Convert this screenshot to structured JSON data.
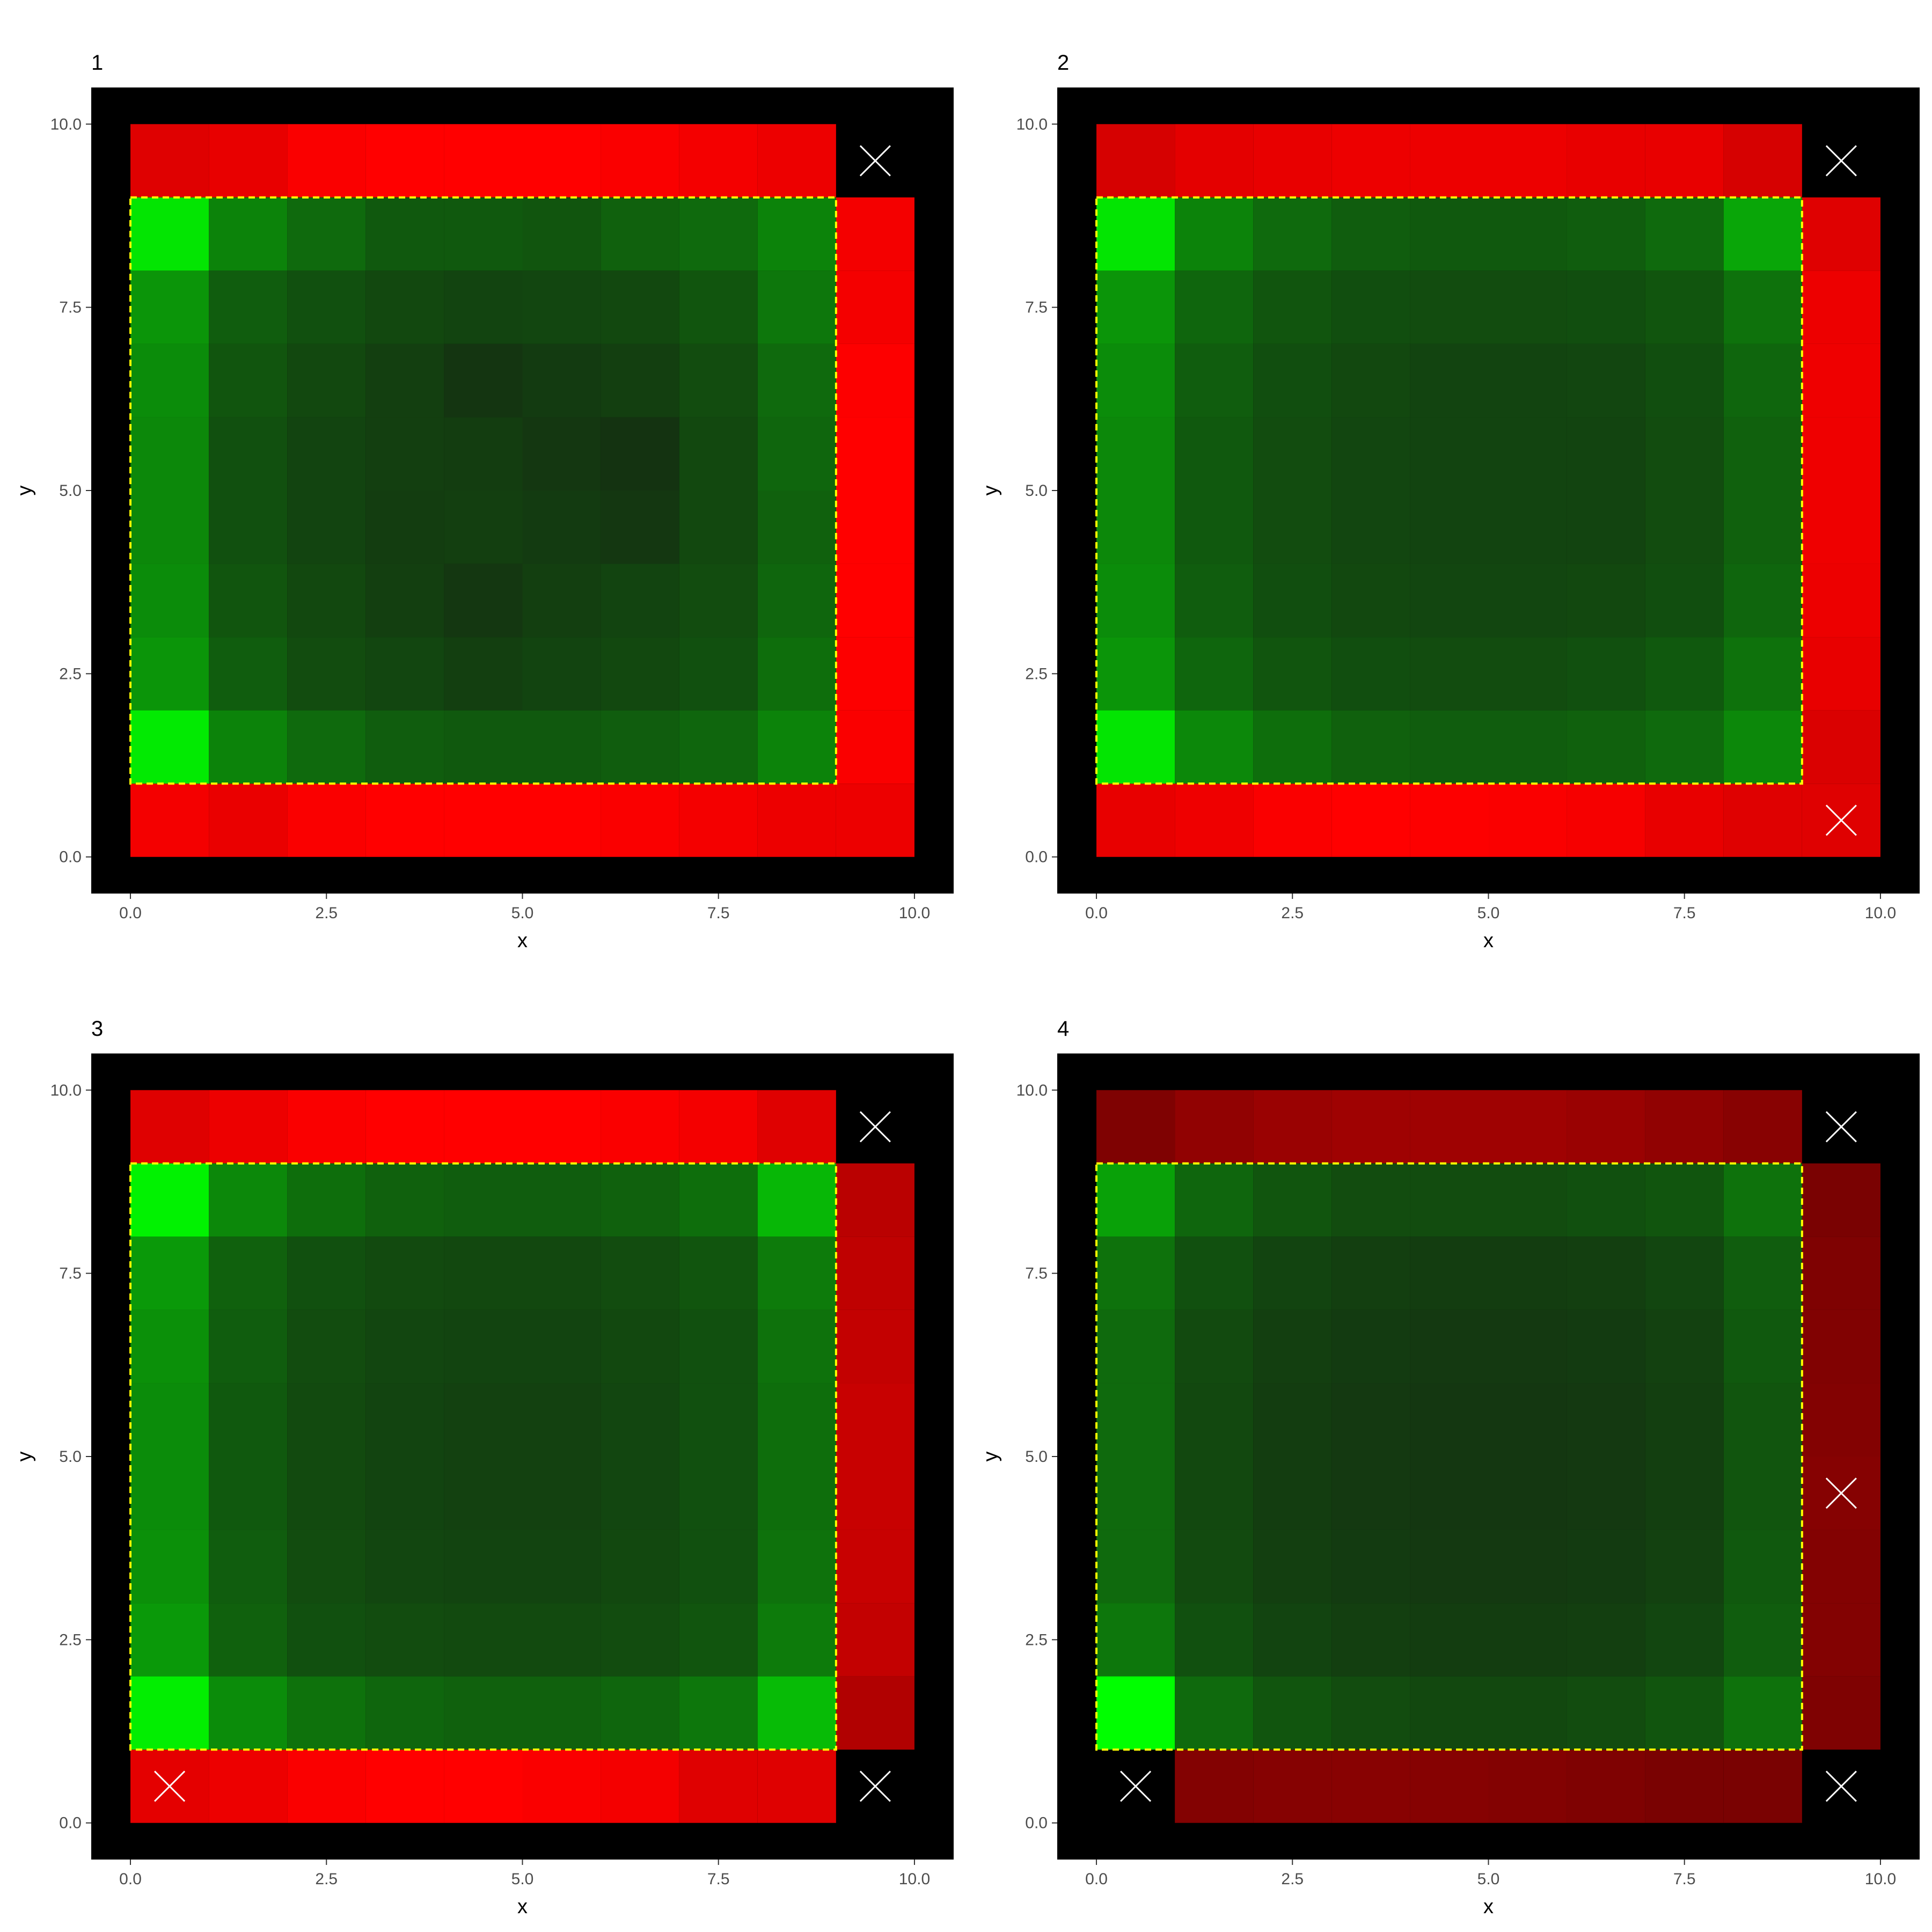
{
  "figure": {
    "panel_background": "#000000",
    "page_background": "#ffffff",
    "tile_colors": {
      "red_bright": "#ff0000",
      "green_bright": "#00ff00",
      "green_dark": "#152a12"
    },
    "outline_color": "#ffff00",
    "marker_color": "#ffffff"
  },
  "chart_data": [
    {
      "type": "heatmap",
      "title": "1",
      "xlabel": "x",
      "ylabel": "y",
      "xlim": [
        -0.5,
        10.5
      ],
      "ylim": [
        -0.5,
        10.5
      ],
      "xticks": [
        "0.0",
        "2.5",
        "5.0",
        "7.5",
        "10.0"
      ],
      "yticks": [
        "0.0",
        "2.5",
        "5.0",
        "7.5",
        "10.0"
      ],
      "outline": {
        "x0": 0,
        "x1": 9,
        "y0": 1,
        "y1": 9
      },
      "red_frame_level": [
        [
          0.86,
          0.9,
          0.98,
          1.0,
          1.0,
          1.0,
          0.98,
          0.95,
          0.92,
          0.9
        ],
        [
          0.95,
          0.94,
          0.95
        ],
        [
          0.98,
          0.99,
          1.0,
          1.0,
          1.0,
          0.99,
          0.95
        ],
        [
          0.95,
          0.91,
          0.98,
          1.0,
          1.0,
          1.0,
          0.98,
          0.95,
          0.92,
          0.92
        ]
      ],
      "green_levels": [
        [
          0.88,
          0.42,
          0.3,
          0.22,
          0.22,
          0.2,
          0.26,
          0.3,
          0.42
        ],
        [
          0.5,
          0.24,
          0.18,
          0.14,
          0.12,
          0.13,
          0.14,
          0.2,
          0.36
        ],
        [
          0.46,
          0.2,
          0.14,
          0.1,
          0.05,
          0.08,
          0.1,
          0.16,
          0.3
        ],
        [
          0.44,
          0.18,
          0.12,
          0.1,
          0.09,
          0.06,
          0.04,
          0.14,
          0.28
        ],
        [
          0.44,
          0.18,
          0.12,
          0.09,
          0.1,
          0.08,
          0.06,
          0.14,
          0.26
        ],
        [
          0.46,
          0.2,
          0.14,
          0.1,
          0.06,
          0.1,
          0.12,
          0.16,
          0.28
        ],
        [
          0.5,
          0.24,
          0.16,
          0.13,
          0.1,
          0.12,
          0.14,
          0.18,
          0.32
        ],
        [
          0.9,
          0.42,
          0.3,
          0.24,
          0.22,
          0.22,
          0.24,
          0.28,
          0.42
        ]
      ],
      "missing_cells": [
        [
          9,
          9
        ]
      ],
      "markers": [
        [
          9,
          9
        ]
      ],
      "fill_mode": "A"
    },
    {
      "type": "heatmap",
      "title": "2",
      "xlabel": "x",
      "ylabel": "y",
      "xlim": [
        -0.5,
        10.5
      ],
      "ylim": [
        -0.5,
        10.5
      ],
      "xticks": [
        "0.0",
        "2.5",
        "5.0",
        "7.5",
        "10.0"
      ],
      "yticks": [
        "0.0",
        "2.5",
        "5.0",
        "7.5",
        "10.0"
      ],
      "outline": {
        "x0": 0,
        "x1": 9,
        "y0": 1,
        "y1": 9
      },
      "red_frame_level": [
        [
          0.82,
          0.88,
          0.9,
          0.92,
          0.92,
          0.92,
          0.9,
          0.9,
          0.82
        ],
        [
          0.84,
          0.9,
          0.92,
          0.93,
          0.93,
          0.93,
          0.92,
          0.86
        ],
        [
          0.9,
          0.93,
          0.98,
          1.0,
          0.99,
          0.98,
          0.96,
          0.9,
          0.86
        ]
      ],
      "green_levels": [
        [
          0.88,
          0.42,
          0.3,
          0.24,
          0.22,
          0.22,
          0.24,
          0.3,
          0.58
        ],
        [
          0.5,
          0.28,
          0.2,
          0.17,
          0.16,
          0.16,
          0.17,
          0.2,
          0.34
        ],
        [
          0.46,
          0.24,
          0.17,
          0.14,
          0.12,
          0.12,
          0.13,
          0.17,
          0.28
        ],
        [
          0.44,
          0.22,
          0.16,
          0.13,
          0.12,
          0.12,
          0.12,
          0.16,
          0.26
        ],
        [
          0.44,
          0.22,
          0.16,
          0.13,
          0.12,
          0.12,
          0.12,
          0.16,
          0.26
        ],
        [
          0.46,
          0.24,
          0.17,
          0.14,
          0.13,
          0.13,
          0.14,
          0.17,
          0.28
        ],
        [
          0.5,
          0.28,
          0.2,
          0.17,
          0.16,
          0.16,
          0.18,
          0.22,
          0.34
        ],
        [
          0.88,
          0.44,
          0.32,
          0.26,
          0.24,
          0.24,
          0.26,
          0.3,
          0.44
        ]
      ],
      "missing_cells": [
        [
          9,
          9
        ]
      ],
      "markers": [
        [
          9,
          9
        ],
        [
          9,
          0
        ]
      ],
      "fill_mode": "B"
    },
    {
      "type": "heatmap",
      "title": "3",
      "xlabel": "x",
      "ylabel": "y",
      "xlim": [
        -0.5,
        10.5
      ],
      "ylim": [
        -0.5,
        10.5
      ],
      "xticks": [
        "0.0",
        "2.5",
        "5.0",
        "7.5",
        "10.0"
      ],
      "yticks": [
        "0.0",
        "2.5",
        "5.0",
        "7.5",
        "10.0"
      ],
      "outline": {
        "x0": 0,
        "x1": 9,
        "y0": 1,
        "y1": 9
      },
      "red_frame_level": [
        [
          0.86,
          0.92,
          0.98,
          1.0,
          1.0,
          1.0,
          0.98,
          0.95,
          0.86
        ],
        [
          0.66,
          0.74,
          0.76,
          0.76,
          0.76,
          0.74,
          0.72,
          0.7
        ],
        [
          0.88,
          0.92,
          0.98,
          1.0,
          1.0,
          0.98,
          0.95,
          0.86
        ]
      ],
      "green_levels": [
        [
          0.94,
          0.44,
          0.32,
          0.26,
          0.24,
          0.24,
          0.26,
          0.32,
          0.66
        ],
        [
          0.52,
          0.26,
          0.18,
          0.15,
          0.14,
          0.14,
          0.16,
          0.2,
          0.38
        ],
        [
          0.48,
          0.24,
          0.16,
          0.13,
          0.12,
          0.12,
          0.14,
          0.18,
          0.34
        ],
        [
          0.46,
          0.22,
          0.15,
          0.12,
          0.11,
          0.11,
          0.13,
          0.18,
          0.32
        ],
        [
          0.46,
          0.22,
          0.15,
          0.12,
          0.11,
          0.11,
          0.13,
          0.18,
          0.32
        ],
        [
          0.48,
          0.24,
          0.16,
          0.13,
          0.12,
          0.12,
          0.14,
          0.18,
          0.34
        ],
        [
          0.52,
          0.26,
          0.18,
          0.16,
          0.15,
          0.15,
          0.16,
          0.2,
          0.38
        ],
        [
          0.92,
          0.46,
          0.34,
          0.28,
          0.26,
          0.26,
          0.28,
          0.36,
          0.68
        ]
      ],
      "missing_cells": [
        [
          9,
          9
        ],
        [
          9,
          0
        ]
      ],
      "markers": [
        [
          9,
          9
        ],
        [
          0,
          0
        ],
        [
          9,
          0
        ]
      ],
      "fill_mode": "C"
    },
    {
      "type": "heatmap",
      "title": "4",
      "xlabel": "x",
      "ylabel": "y",
      "xlim": [
        -0.5,
        10.5
      ],
      "ylim": [
        -0.5,
        10.5
      ],
      "xticks": [
        "0.0",
        "2.5",
        "5.0",
        "7.5",
        "10.0"
      ],
      "yticks": [
        "0.0",
        "2.5",
        "5.0",
        "7.5",
        "10.0"
      ],
      "outline": {
        "x0": 0,
        "x1": 9,
        "y0": 1,
        "y1": 9
      },
      "red_frame_level": [
        [
          0.44,
          0.52,
          0.56,
          0.58,
          0.58,
          0.58,
          0.56,
          0.52,
          0.48
        ],
        [
          0.44,
          0.46,
          0.46,
          0.47,
          0.46,
          0.45,
          0.44,
          0.42
        ],
        [
          0.42,
          0.46,
          0.47,
          0.48,
          0.47,
          0.46,
          0.44,
          0.42
        ]
      ],
      "green_levels": [
        [
          0.56,
          0.28,
          0.2,
          0.16,
          0.16,
          0.16,
          0.18,
          0.2,
          0.34
        ],
        [
          0.34,
          0.18,
          0.12,
          0.1,
          0.09,
          0.09,
          0.1,
          0.13,
          0.24
        ],
        [
          0.3,
          0.15,
          0.1,
          0.08,
          0.07,
          0.07,
          0.08,
          0.11,
          0.22
        ],
        [
          0.3,
          0.14,
          0.09,
          0.07,
          0.06,
          0.06,
          0.07,
          0.1,
          0.2
        ],
        [
          0.3,
          0.14,
          0.09,
          0.07,
          0.06,
          0.06,
          0.07,
          0.1,
          0.2
        ],
        [
          0.3,
          0.15,
          0.1,
          0.08,
          0.07,
          0.07,
          0.08,
          0.11,
          0.22
        ],
        [
          0.36,
          0.18,
          0.12,
          0.1,
          0.09,
          0.09,
          0.1,
          0.13,
          0.24
        ],
        [
          1.0,
          0.3,
          0.2,
          0.16,
          0.14,
          0.14,
          0.16,
          0.2,
          0.34
        ]
      ],
      "missing_cells": [
        [
          9,
          9
        ],
        [
          0,
          0
        ],
        [
          9,
          0
        ]
      ],
      "markers": [
        [
          9,
          9
        ],
        [
          9,
          4
        ],
        [
          0,
          0
        ],
        [
          9,
          0
        ]
      ],
      "fill_mode": "D"
    }
  ]
}
